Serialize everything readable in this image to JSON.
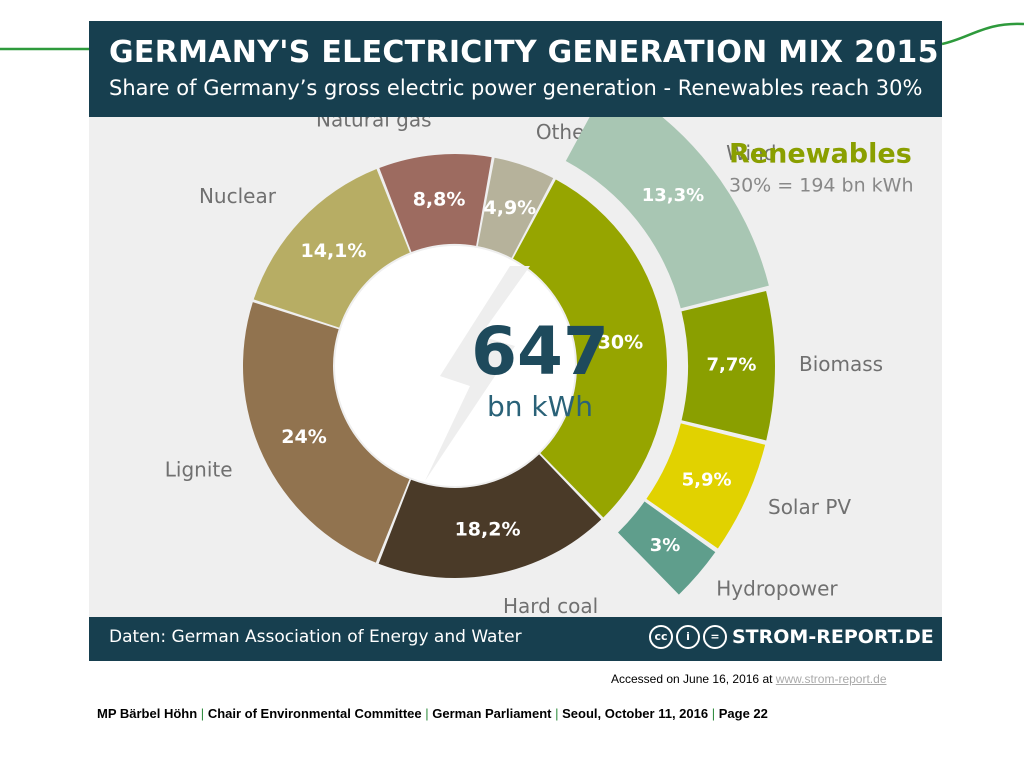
{
  "slide": {
    "accessed_prefix": "Accessed on June 16, 2016 at",
    "accessed_link": "www.strom-report.de",
    "credit": {
      "name": "MP Bärbel Höhn",
      "role": "Chair of Environmental Committee",
      "org": "German Parliament",
      "event": "Seoul, October 11, 2016",
      "page": "Page 22",
      "separator": "|"
    },
    "accent_color": "#2e9a3c"
  },
  "infographic": {
    "title": "GERMANY'S ELECTRICITY GENERATION MIX 2015",
    "subtitle": "Share of Germany’s gross electric power generation - Renewables reach 30%",
    "source": "Daten: German Association of Energy and Water",
    "license_icons": [
      "cc",
      "i",
      "="
    ],
    "brand": "STROM-REPORT.DE",
    "colors": {
      "header_bg": "#173f4f",
      "panel_bg": "#efefef"
    }
  },
  "chart_data": {
    "type": "pie",
    "donut": true,
    "center_value": "647",
    "center_unit": "bn kWh",
    "renewables_heading": "Renewables",
    "renewables_note": "30% = 194 bn kWh",
    "categories": [
      "Renewables",
      "Hard coal",
      "Lignite",
      "Nuclear",
      "Natural gas",
      "Others"
    ],
    "values": [
      30,
      18.2,
      24,
      14.1,
      8.8,
      4.9
    ],
    "value_labels": [
      "30%",
      "18,2%",
      "24%",
      "14,1%",
      "8,8%",
      "4,9%"
    ],
    "names": [
      "",
      "Hard coal",
      "Lignite",
      "Nuclear",
      "Natural gas",
      "Others"
    ],
    "colors": [
      "#96a500",
      "#4a3a28",
      "#91734f",
      "#b7ad64",
      "#9d6b60",
      "#b6b29b"
    ],
    "renewables_breakdown": {
      "categories": [
        "Wind",
        "Biomass",
        "Solar PV",
        "Hydropower"
      ],
      "values": [
        13.3,
        7.7,
        5.9,
        3
      ],
      "value_labels": [
        "13,3%",
        "7,7%",
        "5,9%",
        "3%"
      ],
      "colors": [
        "#a8c6b3",
        "#8a9f00",
        "#e1d200",
        "#5f9e8c"
      ]
    }
  }
}
